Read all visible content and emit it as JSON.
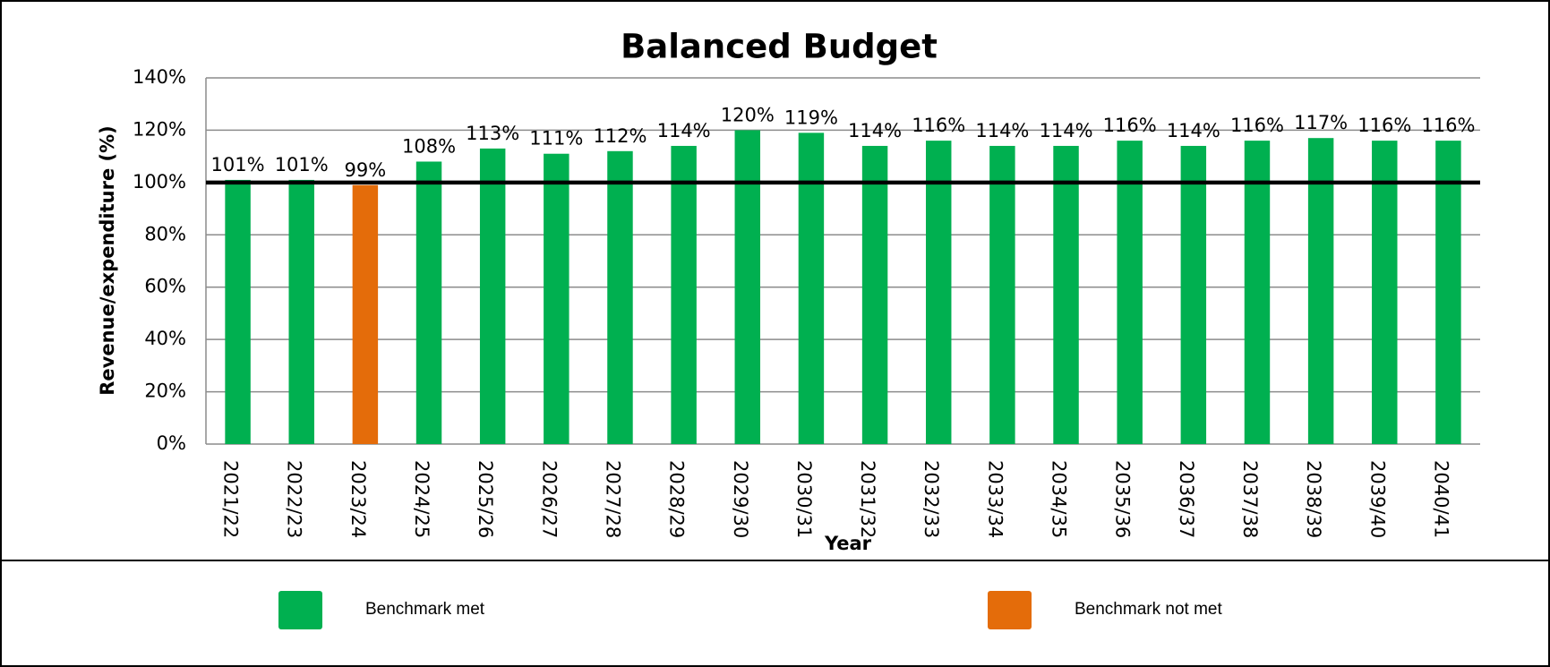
{
  "chart_data": {
    "type": "bar",
    "title": "Balanced Budget",
    "x_label": "Year",
    "y_label": "Revenue/expenditure (%)",
    "categories": [
      "2021/22",
      "2022/23",
      "2023/24",
      "2024/25",
      "2025/26",
      "2026/27",
      "2027/28",
      "2028/29",
      "2029/30",
      "2030/31",
      "2031/32",
      "2032/33",
      "2033/34",
      "2034/35",
      "2035/36",
      "2036/37",
      "2037/38",
      "2038/39",
      "2039/40",
      "2040/41"
    ],
    "values": [
      101,
      101,
      99,
      108,
      113,
      111,
      112,
      114,
      120,
      119,
      114,
      116,
      114,
      114,
      116,
      114,
      116,
      117,
      116,
      116
    ],
    "value_labels": [
      "101%",
      "101%",
      "99%",
      "108%",
      "113%",
      "111%",
      "112%",
      "114%",
      "120%",
      "119%",
      "114%",
      "116%",
      "114%",
      "114%",
      "116%",
      "114%",
      "116%",
      "117%",
      "116%",
      "116%"
    ],
    "colors": [
      "#00b050",
      "#00b050",
      "#e46c0a",
      "#00b050",
      "#00b050",
      "#00b050",
      "#00b050",
      "#00b050",
      "#00b050",
      "#00b050",
      "#00b050",
      "#00b050",
      "#00b050",
      "#00b050",
      "#00b050",
      "#00b050",
      "#00b050",
      "#00b050",
      "#00b050",
      "#00b050"
    ],
    "ylim": [
      0,
      140
    ],
    "yticks": [
      {
        "value": 0,
        "label": "0%"
      },
      {
        "value": 20,
        "label": "20%"
      },
      {
        "value": 40,
        "label": "40%"
      },
      {
        "value": 60,
        "label": "60%"
      },
      {
        "value": 80,
        "label": "80%"
      },
      {
        "value": 100,
        "label": "100%"
      },
      {
        "value": 120,
        "label": "120%"
      },
      {
        "value": 140,
        "label": "140%"
      }
    ],
    "grid": true,
    "reference_line": {
      "value": 100,
      "color": "#000000"
    },
    "legend": [
      {
        "label": "Benchmark met",
        "color": "#00b050"
      },
      {
        "label": "Benchmark not met",
        "color": "#e46c0a"
      }
    ]
  }
}
